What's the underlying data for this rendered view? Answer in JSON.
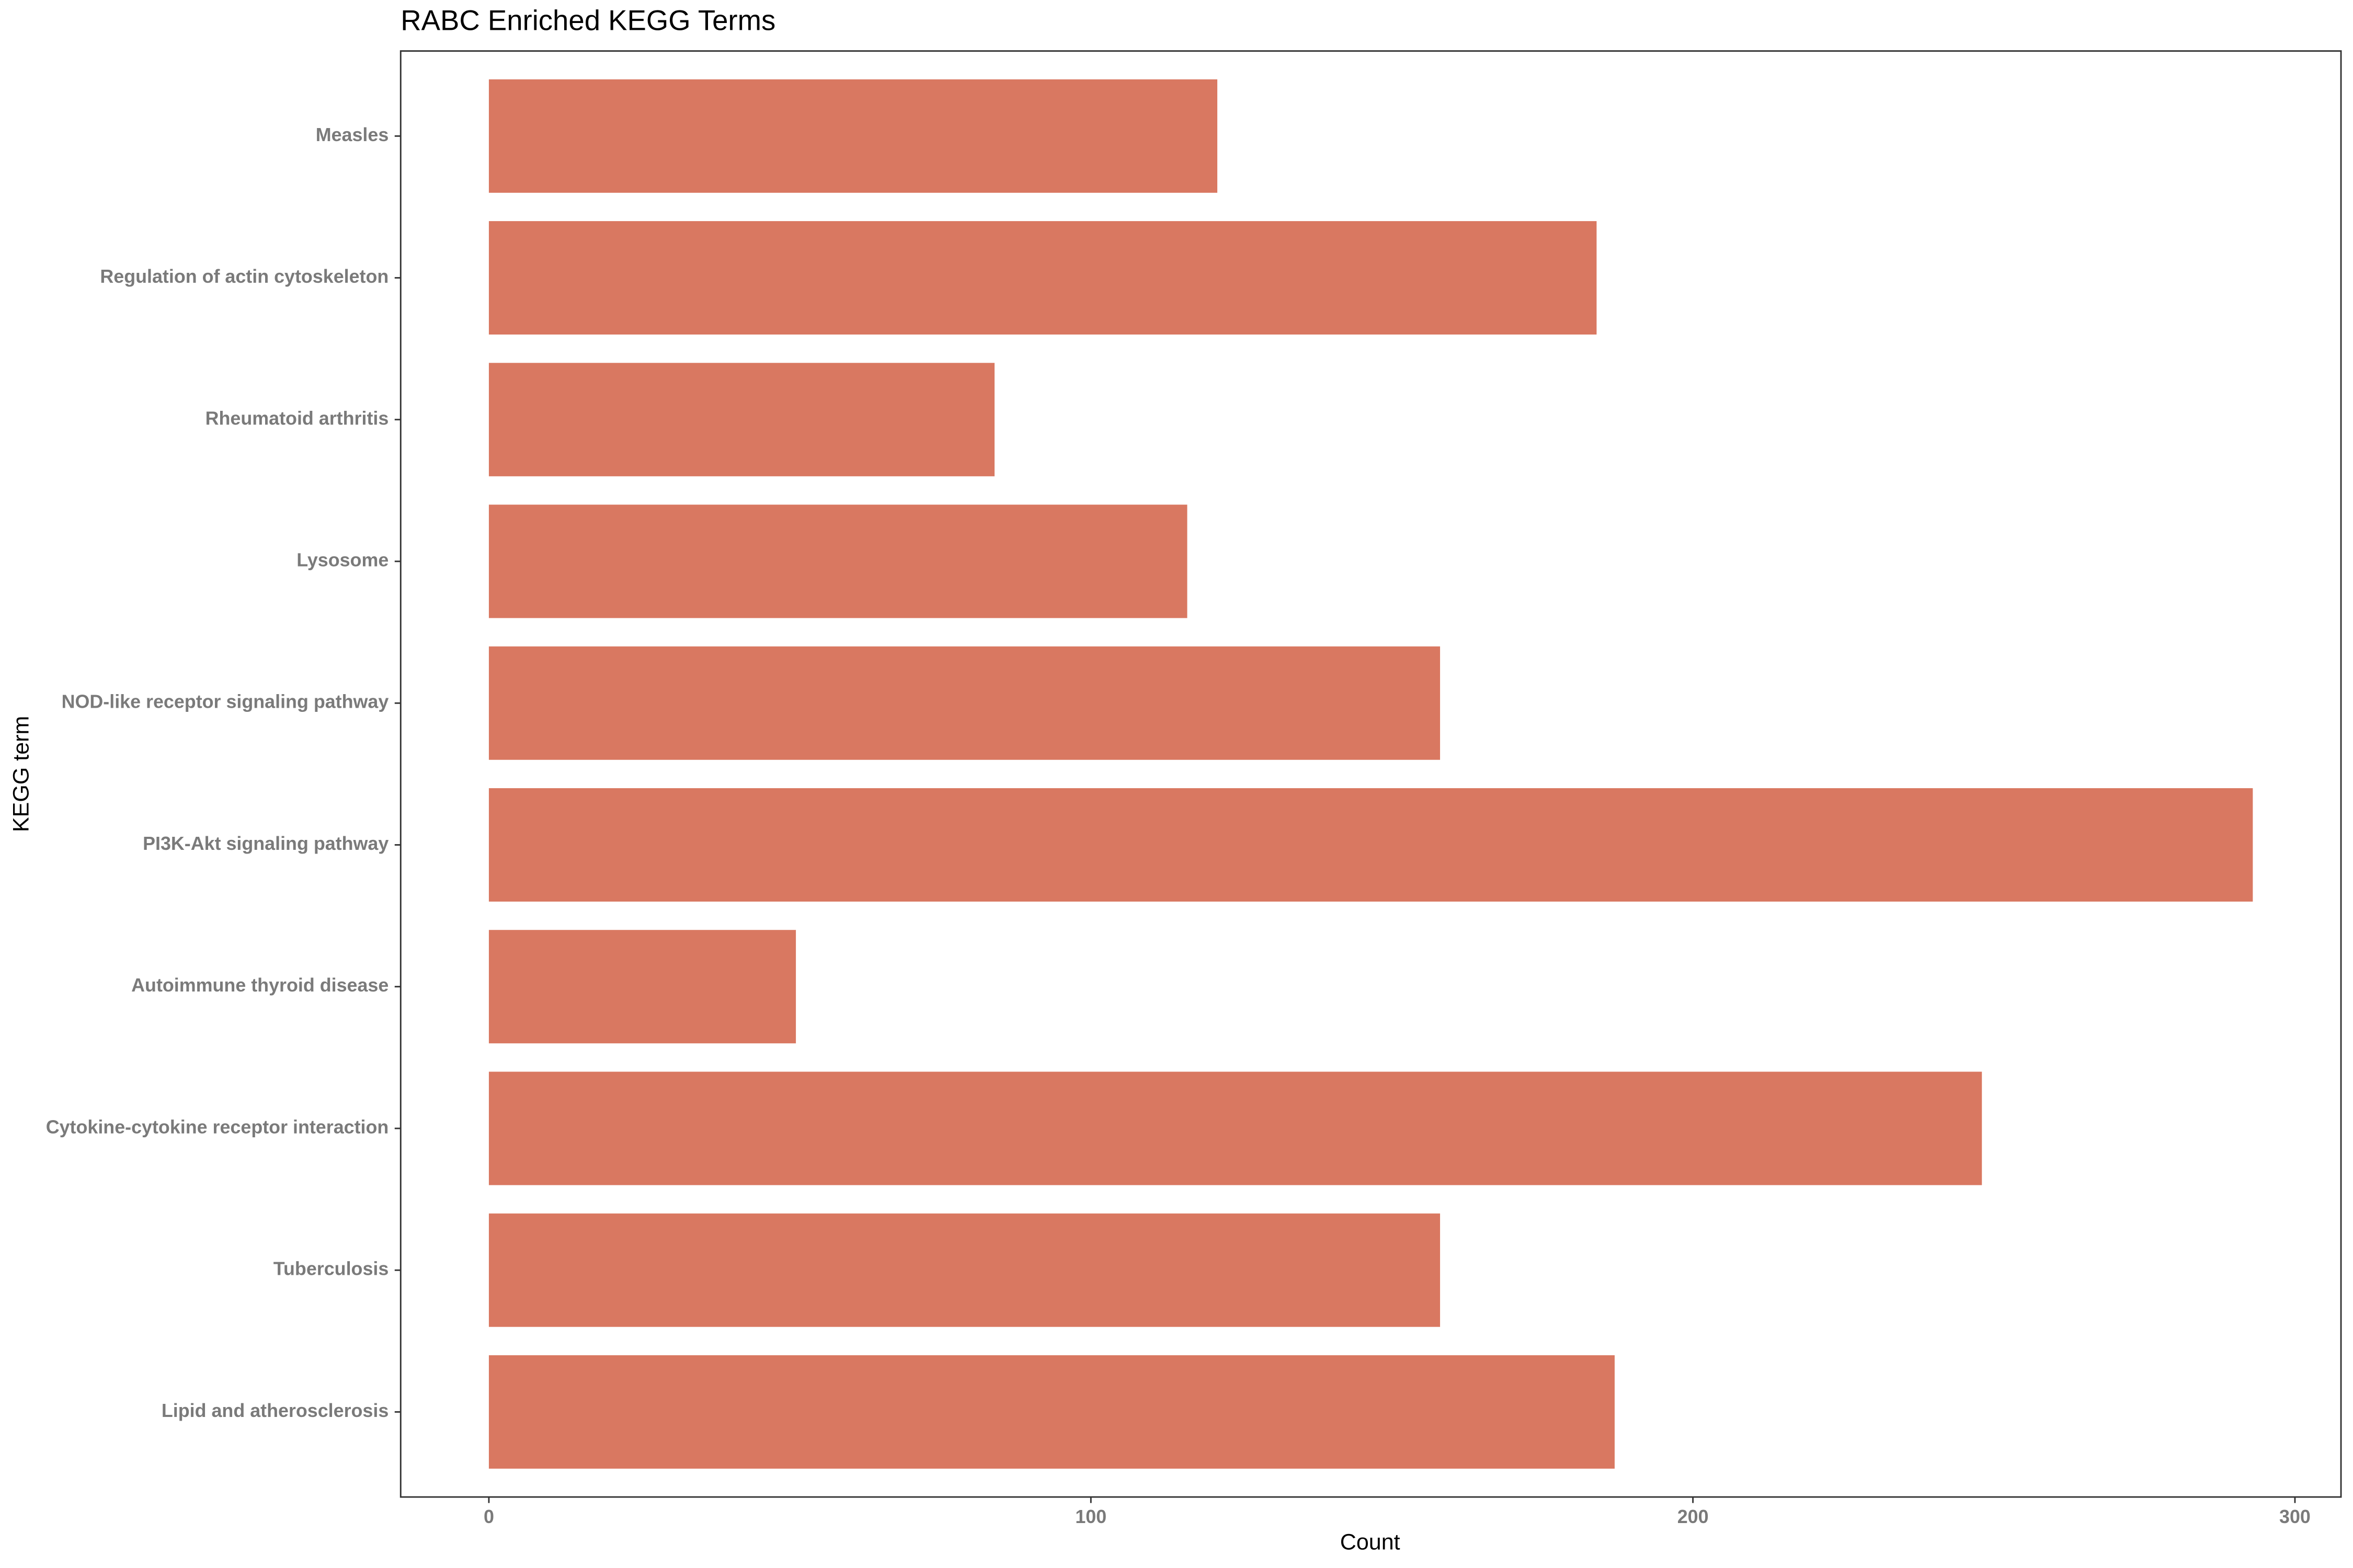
{
  "chart_data": {
    "type": "bar",
    "orientation": "horizontal",
    "title": "RABC Enriched KEGG Terms",
    "x_label": "Count",
    "y_label": "KEGG term",
    "categories": [
      "Measles",
      "Regulation of actin cytoskeleton",
      "Rheumatoid arthritis",
      "Lysosome",
      "NOD-like receptor signaling pathway",
      "PI3K-Akt signaling pathway",
      "Autoimmune thyroid disease",
      "Cytokine-cytokine receptor interaction",
      "Tuberculosis",
      "Lipid and atherosclerosis"
    ],
    "values": [
      121,
      184,
      84,
      116,
      158,
      293,
      51,
      248,
      158,
      187
    ],
    "color": "#d97861",
    "xlim": [
      -14.65,
      307.65
    ],
    "xticks": [
      0,
      100,
      200,
      300
    ],
    "grid": false
  }
}
